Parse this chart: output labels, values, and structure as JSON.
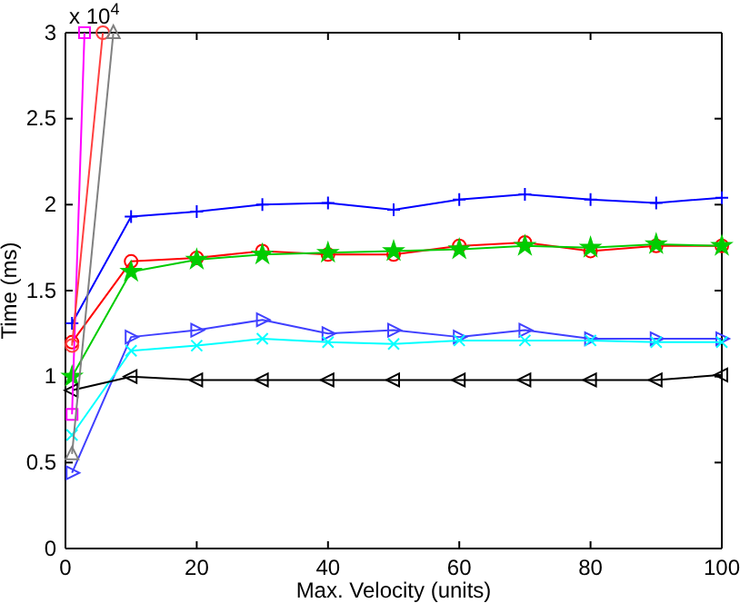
{
  "chart_data": {
    "type": "line",
    "xlabel": "Max. Velocity (units)",
    "ylabel": "Time (ms)",
    "annotations": [
      "x 10$^{4}$"
    ],
    "xlim": [
      0,
      100
    ],
    "xticks": [
      0,
      20,
      40,
      60,
      80,
      100
    ],
    "ylim": [
      0,
      3
    ],
    "yticks": [
      0,
      0.5,
      1,
      1.5,
      2,
      2.5,
      3
    ],
    "grid": false,
    "line_style": "solid",
    "series": [
      {
        "color": "#0000ff",
        "marker": "cross",
        "x": [
          1,
          10,
          20,
          30,
          40,
          50,
          60,
          70,
          80,
          90,
          100
        ],
        "values": [
          1.31,
          1.93,
          1.96,
          2.0,
          2.01,
          1.97,
          2.03,
          2.06,
          2.03,
          2.01,
          2.04
        ]
      },
      {
        "color": "#ff0000",
        "marker": "circle",
        "x": [
          1,
          10,
          20,
          30,
          40,
          50,
          60,
          70,
          80,
          90,
          100
        ],
        "values": [
          1.2,
          1.67,
          1.69,
          1.73,
          1.71,
          1.71,
          1.76,
          1.78,
          1.73,
          1.76,
          1.76
        ]
      },
      {
        "color": "#00cc00",
        "marker": "star",
        "x": [
          1,
          10,
          20,
          30,
          40,
          50,
          60,
          70,
          80,
          90,
          100
        ],
        "values": [
          1.0,
          1.61,
          1.68,
          1.71,
          1.72,
          1.73,
          1.74,
          1.76,
          1.75,
          1.77,
          1.76
        ]
      },
      {
        "color": "#4040ff",
        "marker": "triangle-right",
        "x": [
          1,
          10,
          20,
          30,
          40,
          50,
          60,
          70,
          80,
          90,
          100
        ],
        "values": [
          0.44,
          1.23,
          1.27,
          1.33,
          1.25,
          1.27,
          1.23,
          1.27,
          1.22,
          1.22,
          1.22
        ]
      },
      {
        "color": "#00ffff",
        "marker": "x",
        "x": [
          1,
          10,
          20,
          30,
          40,
          50,
          60,
          70,
          80,
          90,
          100
        ],
        "values": [
          0.66,
          1.15,
          1.18,
          1.22,
          1.2,
          1.19,
          1.21,
          1.21,
          1.21,
          1.2,
          1.2
        ]
      },
      {
        "color": "#000000",
        "marker": "triangle-left",
        "x": [
          1,
          10,
          20,
          30,
          40,
          50,
          60,
          70,
          80,
          90,
          100
        ],
        "values": [
          0.92,
          1.0,
          0.98,
          0.98,
          0.98,
          0.98,
          0.98,
          0.98,
          0.98,
          0.98,
          1.01
        ]
      },
      {
        "color": "#ff00ff",
        "marker": "square",
        "x": [
          1,
          2.9
        ],
        "values": [
          0.78,
          3.0
        ]
      },
      {
        "color": "#ff4040",
        "marker": "circle",
        "x": [
          1,
          5.7
        ],
        "values": [
          1.18,
          3.0
        ]
      },
      {
        "color": "#808080",
        "marker": "triangle",
        "x": [
          1,
          7.3
        ],
        "values": [
          0.55,
          3.0
        ]
      }
    ]
  }
}
